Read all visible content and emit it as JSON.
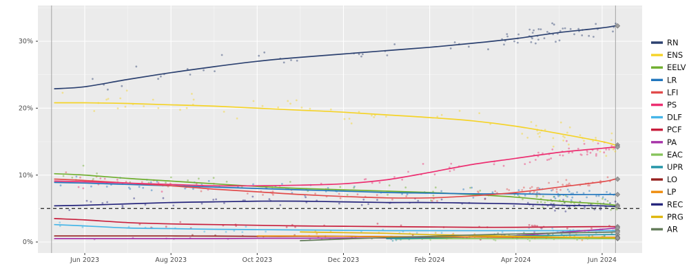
{
  "chart_data": {
    "type": "line",
    "title": "",
    "subtitle": "",
    "description": "Opinion polling trend lines with scatter of individual polls, French parties, Jun 2023 - Jun 2024",
    "legend_position": "right",
    "grid": true,
    "ylabel": "",
    "xlabel": "",
    "ylim": [
      0,
      36.5
    ],
    "xlim_months": [
      -1.1,
      12.95
    ],
    "y_ticks": [
      {
        "v": 0,
        "label": "0%"
      },
      {
        "v": 10,
        "label": "10%"
      },
      {
        "v": 20,
        "label": "20%"
      },
      {
        "v": 30,
        "label": "30%"
      }
    ],
    "y_minor": [
      5,
      15,
      25,
      35
    ],
    "x_ticks": [
      {
        "m": 0,
        "label": "Jun 2023"
      },
      {
        "m": 2,
        "label": "Aug 2023"
      },
      {
        "m": 4,
        "label": "Oct 2023"
      },
      {
        "m": 6,
        "label": "Dec 2023"
      },
      {
        "m": 8,
        "label": "Feb 2024"
      },
      {
        "m": 10,
        "label": "Apr 2024"
      },
      {
        "m": 12,
        "label": "Jun 2024"
      }
    ],
    "x_minor": [
      1,
      3,
      5,
      7,
      9,
      11
    ],
    "threshold_line": {
      "value": 5,
      "style": "dashed",
      "color": "#333333"
    },
    "event_lines_months": [
      -0.77,
      12.31
    ],
    "event_line_color": "#a3a3a3",
    "result_marker": {
      "shape": "diamond",
      "color": "#9b9b9b"
    },
    "plot_bg": "#ebebeb",
    "grid_color": "#ffffff",
    "tick_text_color": "#4d4d4d",
    "series": [
      {
        "name": "RN",
        "color": "#2c4170",
        "points": [
          [
            -0.7,
            22.9
          ],
          [
            0,
            23.2
          ],
          [
            1,
            24.3
          ],
          [
            2,
            25.3
          ],
          [
            3,
            26.2
          ],
          [
            4,
            27.0
          ],
          [
            5,
            27.6
          ],
          [
            6,
            28.1
          ],
          [
            7,
            28.6
          ],
          [
            8,
            29.1
          ],
          [
            9,
            29.7
          ],
          [
            10,
            30.4
          ],
          [
            11,
            31.3
          ],
          [
            12,
            32.0
          ],
          [
            12.3,
            32.3
          ]
        ]
      },
      {
        "name": "ENS",
        "color": "#f5d327",
        "points": [
          [
            -0.7,
            20.8
          ],
          [
            0,
            20.8
          ],
          [
            1,
            20.7
          ],
          [
            2,
            20.5
          ],
          [
            3,
            20.3
          ],
          [
            4,
            20.0
          ],
          [
            5,
            19.7
          ],
          [
            6,
            19.4
          ],
          [
            7,
            19.0
          ],
          [
            8,
            18.6
          ],
          [
            9,
            18.1
          ],
          [
            10,
            17.3
          ],
          [
            11,
            16.2
          ],
          [
            12,
            15.0
          ],
          [
            12.3,
            14.5
          ]
        ]
      },
      {
        "name": "EELV",
        "color": "#6fae2e",
        "points": [
          [
            -0.7,
            10.2
          ],
          [
            0,
            10.0
          ],
          [
            1,
            9.5
          ],
          [
            2,
            9.1
          ],
          [
            3,
            8.7
          ],
          [
            4,
            8.3
          ],
          [
            5,
            8.0
          ],
          [
            6,
            7.8
          ],
          [
            7,
            7.6
          ],
          [
            8,
            7.4
          ],
          [
            9,
            7.1
          ],
          [
            10,
            6.7
          ],
          [
            11,
            6.1
          ],
          [
            12,
            5.7
          ],
          [
            12.3,
            5.5
          ]
        ]
      },
      {
        "name": "LR",
        "color": "#2176bd",
        "points": [
          [
            -0.7,
            8.9
          ],
          [
            0,
            8.8
          ],
          [
            1,
            8.6
          ],
          [
            2,
            8.4
          ],
          [
            3,
            8.2
          ],
          [
            4,
            8.0
          ],
          [
            5,
            7.8
          ],
          [
            6,
            7.6
          ],
          [
            7,
            7.4
          ],
          [
            8,
            7.3
          ],
          [
            9,
            7.2
          ],
          [
            10,
            7.2
          ],
          [
            11,
            7.1
          ],
          [
            12,
            7.1
          ],
          [
            12.3,
            7.1
          ]
        ]
      },
      {
        "name": "LFI",
        "color": "#e14b4b",
        "points": [
          [
            -0.7,
            9.4
          ],
          [
            0,
            9.2
          ],
          [
            1,
            8.8
          ],
          [
            2,
            8.4
          ],
          [
            3,
            7.9
          ],
          [
            4,
            7.5
          ],
          [
            5,
            7.1
          ],
          [
            6,
            6.8
          ],
          [
            7,
            6.6
          ],
          [
            8,
            6.6
          ],
          [
            9,
            6.9
          ],
          [
            10,
            7.4
          ],
          [
            11,
            8.2
          ],
          [
            12,
            9.0
          ],
          [
            12.3,
            9.4
          ]
        ]
      },
      {
        "name": "PS",
        "color": "#ec2f71",
        "points": [
          [
            -0.7,
            9.1
          ],
          [
            0,
            9.0
          ],
          [
            1,
            8.8
          ],
          [
            2,
            8.6
          ],
          [
            3,
            8.4
          ],
          [
            4,
            8.4
          ],
          [
            5,
            8.5
          ],
          [
            6,
            8.7
          ],
          [
            7,
            9.3
          ],
          [
            8,
            10.4
          ],
          [
            9,
            11.6
          ],
          [
            10,
            12.5
          ],
          [
            11,
            13.4
          ],
          [
            12,
            14.0
          ],
          [
            12.3,
            14.2
          ]
        ]
      },
      {
        "name": "DLF",
        "color": "#45b5e8",
        "points": [
          [
            -0.7,
            2.6
          ],
          [
            0,
            2.4
          ],
          [
            1,
            2.1
          ],
          [
            2,
            2.0
          ],
          [
            3,
            1.9
          ],
          [
            4,
            1.85
          ],
          [
            5,
            1.8
          ],
          [
            6,
            1.75
          ],
          [
            7,
            1.7
          ],
          [
            8,
            1.7
          ],
          [
            9,
            1.7
          ],
          [
            10,
            1.7
          ],
          [
            11,
            1.7
          ],
          [
            12,
            1.7
          ],
          [
            12.3,
            1.7
          ]
        ]
      },
      {
        "name": "PCF",
        "color": "#c81e3c",
        "points": [
          [
            -0.7,
            3.5
          ],
          [
            0,
            3.3
          ],
          [
            1,
            2.9
          ],
          [
            2,
            2.7
          ],
          [
            3,
            2.6
          ],
          [
            4,
            2.5
          ],
          [
            5,
            2.4
          ],
          [
            6,
            2.35
          ],
          [
            7,
            2.3
          ],
          [
            8,
            2.25
          ],
          [
            9,
            2.2
          ],
          [
            10,
            2.2
          ],
          [
            11,
            2.25
          ],
          [
            12,
            2.3
          ],
          [
            12.3,
            2.3
          ]
        ]
      },
      {
        "name": "PA",
        "color": "#a733a8",
        "points": [
          [
            -0.7,
            0.5
          ],
          [
            0,
            0.5
          ],
          [
            1,
            0.5
          ],
          [
            2,
            0.5
          ],
          [
            3,
            0.5
          ],
          [
            4,
            0.55
          ],
          [
            5,
            0.55
          ],
          [
            6,
            0.6
          ],
          [
            7,
            0.6
          ],
          [
            8,
            0.65
          ],
          [
            9,
            0.75
          ],
          [
            10,
            0.95
          ],
          [
            11,
            1.4
          ],
          [
            12,
            1.9
          ],
          [
            12.3,
            2.1
          ]
        ]
      },
      {
        "name": "EAC",
        "color": "#86c35a",
        "points": [
          [
            7.2,
            0.45
          ],
          [
            8,
            0.5
          ],
          [
            9,
            0.5
          ],
          [
            10,
            0.5
          ],
          [
            11,
            0.5
          ],
          [
            12,
            0.5
          ],
          [
            12.3,
            0.5
          ]
        ]
      },
      {
        "name": "UPR",
        "color": "#2596a8",
        "points": [
          [
            7,
            0.5
          ],
          [
            8,
            0.6
          ],
          [
            9,
            0.8
          ],
          [
            10,
            0.9
          ],
          [
            11,
            1.0
          ],
          [
            12,
            1.1
          ],
          [
            12.3,
            1.1
          ]
        ]
      },
      {
        "name": "LO",
        "color": "#96201f",
        "points": [
          [
            -0.7,
            0.9
          ],
          [
            0,
            0.9
          ],
          [
            1,
            0.9
          ],
          [
            2,
            0.9
          ],
          [
            3,
            0.88
          ],
          [
            4,
            0.85
          ],
          [
            5,
            0.85
          ],
          [
            6,
            0.85
          ],
          [
            7,
            0.8
          ],
          [
            8,
            0.78
          ],
          [
            9,
            0.75
          ],
          [
            10,
            0.72
          ],
          [
            11,
            0.7
          ],
          [
            12,
            0.7
          ],
          [
            12.3,
            0.7
          ]
        ]
      },
      {
        "name": "LP",
        "color": "#ee8c0e",
        "points": [
          [
            4,
            0.9
          ],
          [
            5,
            0.9
          ],
          [
            6,
            0.85
          ],
          [
            7,
            0.8
          ],
          [
            8,
            0.8
          ],
          [
            9,
            0.78
          ],
          [
            10,
            0.75
          ],
          [
            11,
            0.72
          ],
          [
            12,
            0.7
          ],
          [
            12.3,
            0.7
          ]
        ]
      },
      {
        "name": "REC",
        "color": "#26267d",
        "points": [
          [
            -0.7,
            5.4
          ],
          [
            0,
            5.5
          ],
          [
            1,
            5.7
          ],
          [
            2,
            5.9
          ],
          [
            3,
            6.0
          ],
          [
            4,
            6.1
          ],
          [
            5,
            6.1
          ],
          [
            6,
            6.0
          ],
          [
            7,
            5.9
          ],
          [
            8,
            5.9
          ],
          [
            9,
            5.8
          ],
          [
            10,
            5.7
          ],
          [
            11,
            5.5
          ],
          [
            12,
            5.4
          ],
          [
            12.3,
            5.3
          ]
        ]
      },
      {
        "name": "PRG",
        "color": "#dfb70f",
        "points": [
          [
            5,
            1.5
          ],
          [
            6,
            1.4
          ],
          [
            7,
            1.3
          ],
          [
            8,
            1.1
          ],
          [
            9,
            1.0
          ],
          [
            10,
            0.85
          ],
          [
            11,
            0.75
          ],
          [
            12,
            0.65
          ],
          [
            12.3,
            0.6
          ]
        ]
      },
      {
        "name": "AR",
        "color": "#647d5b",
        "points": [
          [
            5,
            0.2
          ],
          [
            6,
            0.45
          ],
          [
            7,
            0.65
          ],
          [
            8,
            0.85
          ],
          [
            9,
            1.05
          ],
          [
            10,
            1.2
          ],
          [
            11,
            1.35
          ],
          [
            12,
            1.45
          ],
          [
            12.3,
            1.5
          ]
        ]
      }
    ]
  }
}
